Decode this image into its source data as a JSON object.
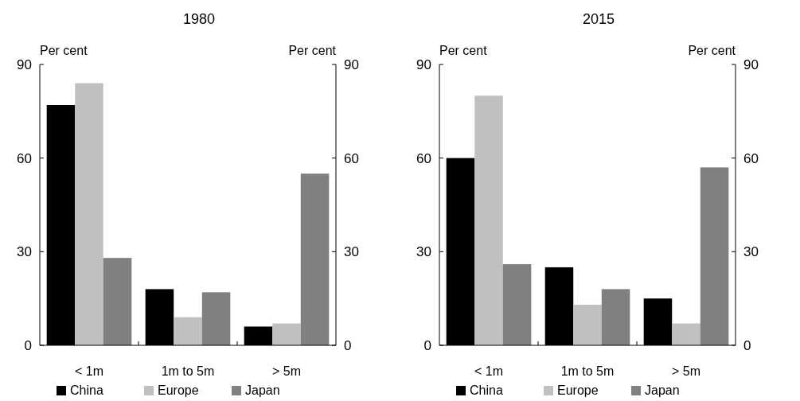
{
  "chart_data": [
    {
      "type": "bar",
      "title": "1980",
      "ylabel": "Per cent",
      "y2label": "Per cent",
      "categories": [
        "< 1m",
        "1m to 5m",
        "> 5m"
      ],
      "series": [
        {
          "name": "China",
          "color": "#000000",
          "values": [
            77,
            18,
            6
          ]
        },
        {
          "name": "Europe",
          "color": "#c0c0c0",
          "values": [
            84,
            9,
            7
          ]
        },
        {
          "name": "Japan",
          "color": "#808080",
          "values": [
            28,
            17,
            55
          ]
        }
      ],
      "ylim": [
        0,
        90
      ],
      "yticks": [
        0,
        30,
        60,
        90
      ],
      "y2lim": [
        0,
        90
      ],
      "y2ticks": [
        0,
        30,
        60,
        90
      ],
      "grid": false,
      "legend": "bottom"
    },
    {
      "type": "bar",
      "title": "2015",
      "ylabel": "Per cent",
      "y2label": "Per cent",
      "categories": [
        "< 1m",
        "1m to 5m",
        "> 5m"
      ],
      "series": [
        {
          "name": "China",
          "color": "#000000",
          "values": [
            60,
            25,
            15
          ]
        },
        {
          "name": "Europe",
          "color": "#c0c0c0",
          "values": [
            80,
            13,
            7
          ]
        },
        {
          "name": "Japan",
          "color": "#808080",
          "values": [
            26,
            18,
            57
          ]
        }
      ],
      "ylim": [
        0,
        90
      ],
      "yticks": [
        0,
        30,
        60,
        90
      ],
      "y2lim": [
        0,
        90
      ],
      "y2ticks": [
        0,
        30,
        60,
        90
      ],
      "grid": false,
      "legend": "bottom"
    }
  ]
}
